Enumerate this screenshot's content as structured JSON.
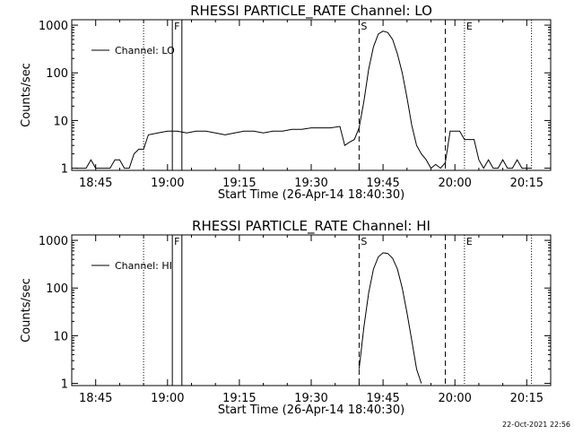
{
  "footer": {
    "timestamp": "22-Oct-2021 22:56"
  },
  "chart_data": [
    {
      "type": "line",
      "title": "RHESSI PARTICLE_RATE Channel: LO",
      "xlabel": "Start Time (26-Apr-14 18:40:30)",
      "ylabel": "Counts/sec",
      "y_scale": "log",
      "ylim": [
        0.9,
        1300
      ],
      "xlim": [
        "18:40",
        "20:20"
      ],
      "x_ticks": [
        "18:45",
        "19:00",
        "19:15",
        "19:30",
        "19:45",
        "20:00",
        "20:15"
      ],
      "y_ticks": [
        "1",
        "10",
        "100",
        "1000"
      ],
      "legend": {
        "placement": "top-left",
        "label": "Channel: LO"
      },
      "markers": [
        {
          "label": "",
          "time": "18:55",
          "style": "dotted"
        },
        {
          "label": "F",
          "time": "19:01",
          "style": "solid"
        },
        {
          "label": "",
          "time": "19:03",
          "style": "solid"
        },
        {
          "label": "S",
          "time": "19:40",
          "style": "dashed"
        },
        {
          "label": "",
          "time": "19:58",
          "style": "dashed"
        },
        {
          "label": "E",
          "time": "20:02",
          "style": "dotted"
        },
        {
          "label": "",
          "time": "20:16",
          "style": "dotted"
        }
      ],
      "series": [
        {
          "name": "Channel: LO",
          "x": [
            "18:41",
            "18:42",
            "18:43",
            "18:44",
            "18:45",
            "18:46",
            "18:47",
            "18:48",
            "18:49",
            "18:50",
            "18:51",
            "18:52",
            "18:53",
            "18:54",
            "18:55",
            "18:56",
            "18:58",
            "19:00",
            "19:02",
            "19:04",
            "19:06",
            "19:08",
            "19:10",
            "19:12",
            "19:14",
            "19:16",
            "19:18",
            "19:20",
            "19:22",
            "19:24",
            "19:26",
            "19:28",
            "19:30",
            "19:32",
            "19:34",
            "19:36",
            "19:37",
            "19:38",
            "19:39",
            "19:40",
            "19:41",
            "19:42",
            "19:43",
            "19:44",
            "19:45",
            "19:46",
            "19:47",
            "19:48",
            "19:49",
            "19:50",
            "19:51",
            "19:52",
            "19:53",
            "19:54",
            "19:55",
            "19:56",
            "19:57",
            "19:58",
            "19:59",
            "20:00",
            "20:01",
            "20:02",
            "20:03",
            "20:04",
            "20:05",
            "20:06",
            "20:07",
            "20:08",
            "20:09",
            "20:10",
            "20:11",
            "20:12",
            "20:13",
            "20:14",
            "20:15",
            "20:16"
          ],
          "values": [
            1,
            1,
            1,
            1.5,
            1,
            1,
            1,
            1,
            1.5,
            1.5,
            1,
            1,
            2,
            2.5,
            2.5,
            5,
            5.5,
            6,
            6,
            5.5,
            6,
            6,
            5.5,
            5,
            5.5,
            6,
            6,
            5.5,
            6,
            6,
            6.5,
            6.5,
            7,
            7,
            7,
            7.5,
            3,
            3.5,
            4,
            7,
            25,
            120,
            350,
            650,
            750,
            700,
            500,
            250,
            100,
            30,
            8,
            3,
            2,
            1.5,
            1,
            1.2,
            1,
            1.3,
            6,
            6,
            6,
            4,
            4,
            4,
            1.5,
            1,
            1.5,
            1,
            1,
            1.5,
            1,
            1,
            1.5,
            1,
            1,
            1
          ]
        }
      ]
    },
    {
      "type": "line",
      "title": "RHESSI PARTICLE_RATE Channel: HI",
      "xlabel": "Start Time (26-Apr-14 18:40:30)",
      "ylabel": "Counts/sec",
      "y_scale": "log",
      "ylim": [
        0.9,
        1300
      ],
      "xlim": [
        "18:40",
        "20:20"
      ],
      "x_ticks": [
        "18:45",
        "19:00",
        "19:15",
        "19:30",
        "19:45",
        "20:00",
        "20:15"
      ],
      "y_ticks": [
        "1",
        "10",
        "100",
        "1000"
      ],
      "legend": {
        "placement": "top-left",
        "label": "Channel: HI"
      },
      "markers": [
        {
          "label": "",
          "time": "18:55",
          "style": "dotted"
        },
        {
          "label": "F",
          "time": "19:01",
          "style": "solid"
        },
        {
          "label": "",
          "time": "19:03",
          "style": "solid"
        },
        {
          "label": "S",
          "time": "19:40",
          "style": "dashed"
        },
        {
          "label": "",
          "time": "19:58",
          "style": "dashed"
        },
        {
          "label": "E",
          "time": "20:02",
          "style": "dotted"
        },
        {
          "label": "",
          "time": "20:16",
          "style": "dotted"
        }
      ],
      "series": [
        {
          "name": "Channel: HI",
          "x": [
            "19:40",
            "19:41",
            "19:42",
            "19:43",
            "19:44",
            "19:45",
            "19:46",
            "19:47",
            "19:48",
            "19:49",
            "19:50",
            "19:51",
            "19:52",
            "19:53"
          ],
          "values": [
            2,
            15,
            80,
            250,
            450,
            550,
            530,
            420,
            250,
            100,
            30,
            8,
            2,
            1
          ]
        }
      ]
    }
  ]
}
